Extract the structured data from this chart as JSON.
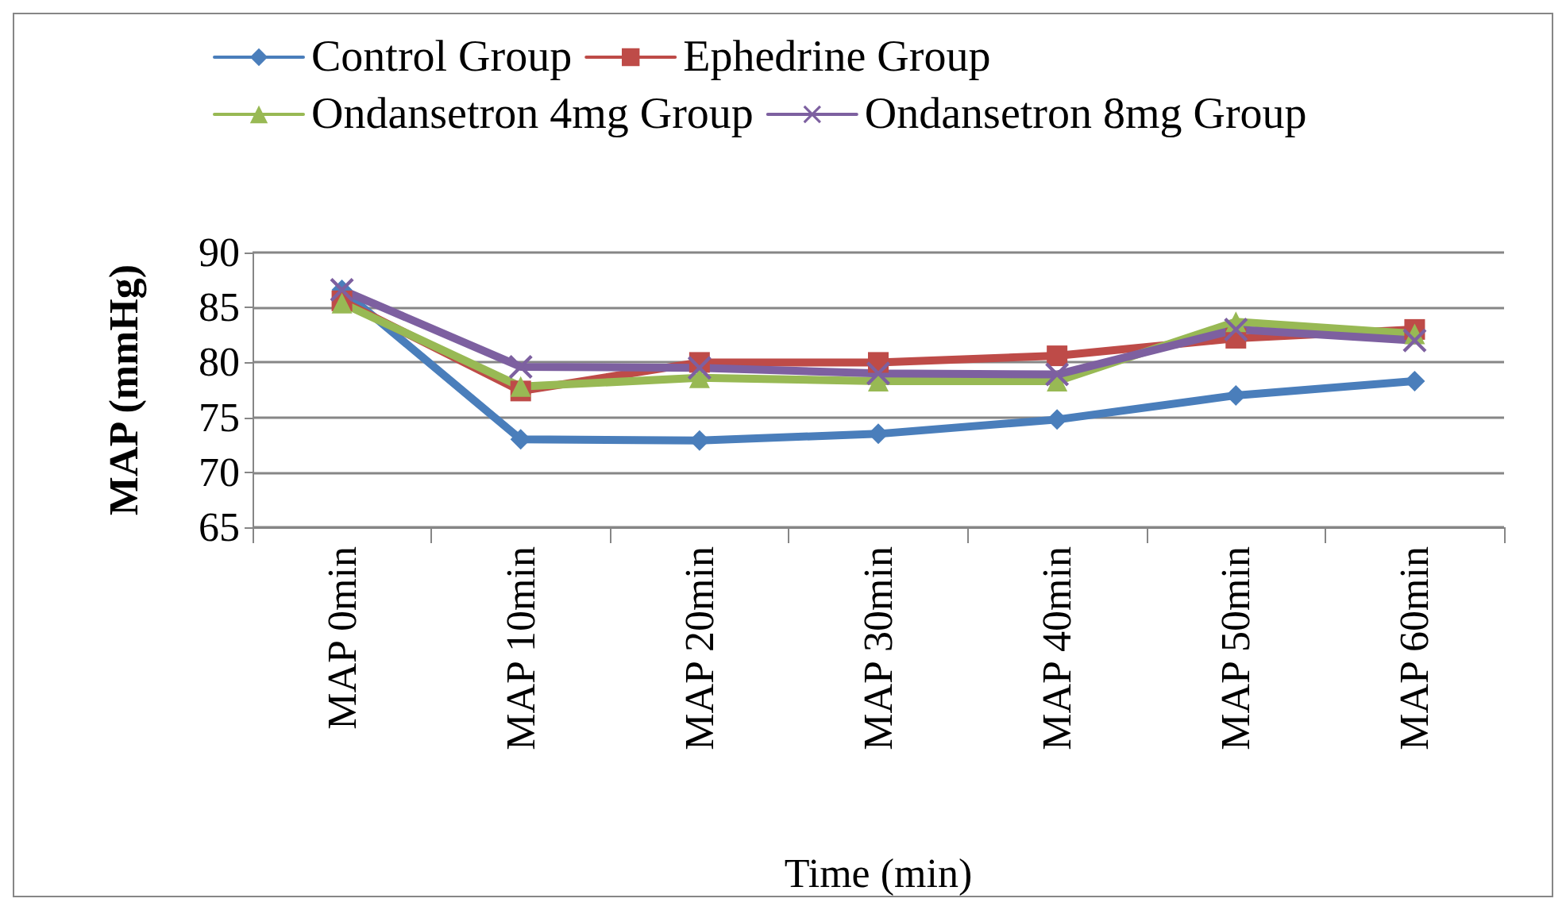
{
  "chart_data": {
    "type": "line",
    "xlabel": "Time (min)",
    "ylabel": "MAP (mmHg)",
    "categories": [
      "MAP 0min",
      "MAP 10min",
      "MAP 20min",
      "MAP 30min",
      "MAP 40min",
      "MAP 50min",
      "MAP 60min"
    ],
    "series": [
      {
        "name": "Control Group",
        "color": "#4a7ebb",
        "marker": "diamond",
        "values": [
          86.6,
          73.0,
          72.9,
          73.5,
          74.8,
          77.0,
          78.3
        ]
      },
      {
        "name": "Ephedrine Group",
        "color": "#be4b48",
        "marker": "square",
        "values": [
          85.6,
          77.4,
          80.0,
          80.0,
          80.6,
          82.2,
          83.0
        ]
      },
      {
        "name": "Ondansetron 4mg Group",
        "color": "#98b954",
        "marker": "triangle",
        "values": [
          85.4,
          77.8,
          78.6,
          78.3,
          78.3,
          83.7,
          82.6
        ]
      },
      {
        "name": "Ondansetron 8mg Group",
        "color": "#7d60a0",
        "marker": "cross",
        "values": [
          86.6,
          79.6,
          79.5,
          79.0,
          78.9,
          83.0,
          82.0
        ]
      }
    ],
    "ylim": [
      65,
      90
    ],
    "yticks": [
      65,
      70,
      75,
      80,
      85,
      90
    ],
    "grid": "y",
    "legend": "top",
    "line_style": "solid"
  }
}
